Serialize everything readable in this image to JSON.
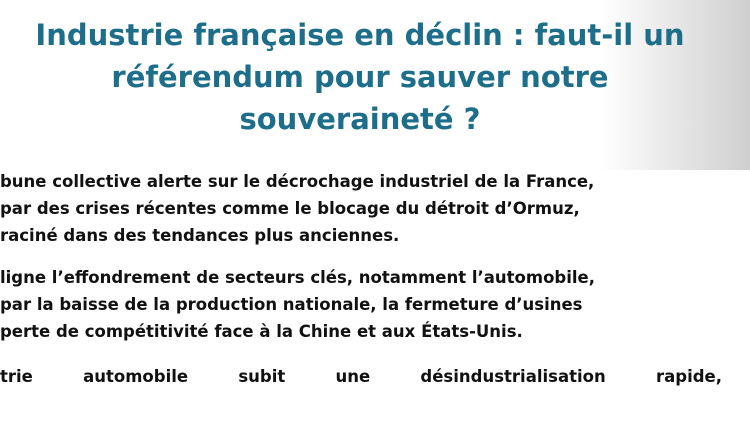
{
  "title": [
    "Industrie française en déclin : faut-il un",
    "référendum pour sauver notre",
    "souveraineté ?"
  ],
  "paragraphs": [
    [
      "bune collective alerte sur le décrochage industriel de la France,",
      "par des crises récentes comme le blocage du détroit d’Ormuz,",
      "raciné dans des tendances plus anciennes."
    ],
    [
      "ligne l’effondrement de secteurs clés, notamment l’automobile,",
      "par la baisse de la production nationale, la fermeture d’usines",
      "perte de compétitivité face à la Chine et aux États-Unis."
    ],
    [
      "trie automobile subit une désindustrialisation rapide,"
    ]
  ]
}
